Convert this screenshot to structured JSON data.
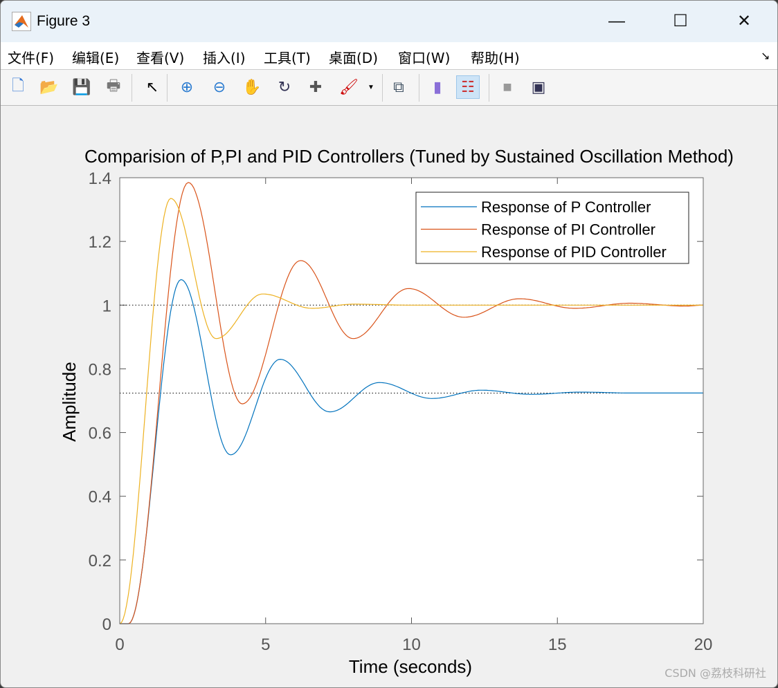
{
  "window": {
    "title": "Figure 3",
    "minimize": "—",
    "maximize": "☐",
    "close": "✕"
  },
  "menu": [
    "文件(F)",
    "编辑(E)",
    "查看(V)",
    "插入(I)",
    "工具(T)",
    "桌面(D)",
    "窗口(W)",
    "帮助(H)"
  ],
  "toolbar": [
    {
      "icon": "new-figure-icon",
      "glyph": "🗋",
      "color": "#3a7bd5"
    },
    {
      "icon": "open-file-icon",
      "glyph": "📂",
      "color": "#d6a21e"
    },
    {
      "icon": "save-icon",
      "glyph": "💾",
      "color": "#3a3a8a"
    },
    {
      "icon": "print-icon",
      "glyph": "🖶",
      "color": "#777"
    },
    {
      "icon": "pointer-icon",
      "glyph": "↖",
      "color": "#000"
    },
    {
      "icon": "zoom-in-icon",
      "glyph": "⊕",
      "color": "#2a7bd0"
    },
    {
      "icon": "zoom-out-icon",
      "glyph": "⊖",
      "color": "#2a7bd0"
    },
    {
      "icon": "pan-hand-icon",
      "glyph": "✋",
      "color": "#d9a070"
    },
    {
      "icon": "rotate-3d-icon",
      "glyph": "↻",
      "color": "#335"
    },
    {
      "icon": "data-cursor-icon",
      "glyph": "✚",
      "color": "#555"
    },
    {
      "icon": "brush-icon",
      "glyph": "🖌",
      "color": "#c00"
    },
    {
      "icon": "link-plot-icon",
      "glyph": "⧉",
      "color": "#456"
    },
    {
      "icon": "colorbar-icon",
      "glyph": "▮",
      "color": "#8a6fd8"
    },
    {
      "icon": "legend-icon",
      "glyph": "☷",
      "color": "#c33"
    },
    {
      "icon": "hide-plot-tools-icon",
      "glyph": "■",
      "color": "#999"
    },
    {
      "icon": "show-plot-tools-icon",
      "glyph": "▣",
      "color": "#335"
    }
  ],
  "watermark": "CSDN @荔枝科研社",
  "chart_data": {
    "type": "line",
    "title": "Comparision of P,PI and PID Controllers (Tuned by Sustained Oscillation Method)",
    "xlabel": "Time (seconds)",
    "ylabel": "Amplitude",
    "xlim": [
      0,
      20
    ],
    "ylim": [
      0,
      1.4
    ],
    "xticks": [
      "0",
      "5",
      "10",
      "15",
      "20"
    ],
    "xtick_values": [
      0,
      5,
      10,
      15,
      20
    ],
    "yticks": [
      "0",
      "0.2",
      "0.4",
      "0.6",
      "0.8",
      "1",
      "1.2",
      "1.4"
    ],
    "ytick_values": [
      0,
      0.2,
      0.4,
      0.6,
      0.8,
      1,
      1.2,
      1.4
    ],
    "legend_position": "top-right",
    "steady_state_lines": [
      1.0,
      0.724
    ],
    "series": [
      {
        "name": "Response of P Controller",
        "color": "#0072bd",
        "points": [
          [
            0,
            0
          ],
          [
            0.3,
            0
          ],
          [
            2.1,
            1.08
          ],
          [
            3.8,
            0.53
          ],
          [
            5.5,
            0.83
          ],
          [
            7.2,
            0.665
          ],
          [
            8.9,
            0.757
          ],
          [
            10.7,
            0.707
          ],
          [
            12.4,
            0.733
          ],
          [
            14.1,
            0.72
          ],
          [
            15.8,
            0.727
          ],
          [
            17.6,
            0.724
          ],
          [
            20,
            0.724
          ]
        ]
      },
      {
        "name": "Response of PI Controller",
        "color": "#d95319",
        "points": [
          [
            0,
            0
          ],
          [
            0.3,
            0
          ],
          [
            2.35,
            1.385
          ],
          [
            4.2,
            0.69
          ],
          [
            6.2,
            1.14
          ],
          [
            8.0,
            0.895
          ],
          [
            9.9,
            1.052
          ],
          [
            11.8,
            0.962
          ],
          [
            13.7,
            1.02
          ],
          [
            15.6,
            0.99
          ],
          [
            17.5,
            1.006
          ],
          [
            19.4,
            0.997
          ],
          [
            20,
            1.0
          ]
        ]
      },
      {
        "name": "Response of PID Controller",
        "color": "#edb120",
        "points": [
          [
            0,
            0
          ],
          [
            1.75,
            1.335
          ],
          [
            3.3,
            0.895
          ],
          [
            4.9,
            1.035
          ],
          [
            6.6,
            0.99
          ],
          [
            8.0,
            1.003
          ],
          [
            10,
            1.0
          ],
          [
            20,
            1.0
          ]
        ]
      }
    ]
  }
}
